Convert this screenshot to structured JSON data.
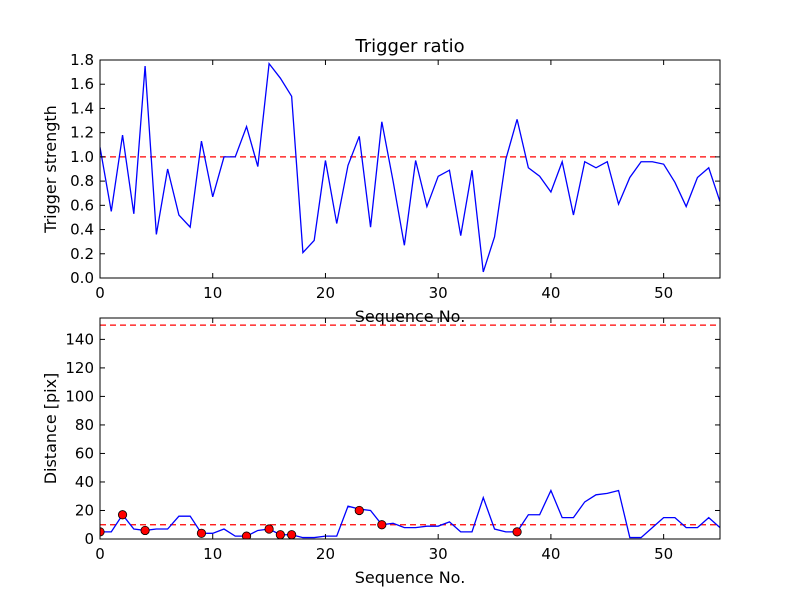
{
  "chart_data": [
    {
      "type": "line",
      "title": "Trigger ratio",
      "xlabel": "Sequence No.",
      "ylabel": "Trigger strength",
      "xlim": [
        0,
        55
      ],
      "ylim": [
        0,
        1.8
      ],
      "xticks": [
        0,
        10,
        20,
        30,
        40,
        50
      ],
      "yticks": [
        0.0,
        0.2,
        0.4,
        0.6,
        0.8,
        1.0,
        1.2,
        1.4,
        1.6,
        1.8
      ],
      "xtick_labels": [
        "0",
        "10",
        "20",
        "30",
        "40",
        "50"
      ],
      "ytick_labels": [
        "0.0",
        "0.2",
        "0.4",
        "0.6",
        "0.8",
        "1.0",
        "1.2",
        "1.4",
        "1.6",
        "1.8"
      ],
      "grid": false,
      "series": [
        {
          "color": "#0000ff",
          "style": "solid",
          "x": [
            0,
            1,
            2,
            3,
            4,
            5,
            6,
            7,
            8,
            9,
            10,
            11,
            12,
            13,
            14,
            15,
            16,
            17,
            18,
            19,
            20,
            21,
            22,
            23,
            24,
            25,
            26,
            27,
            28,
            29,
            30,
            31,
            32,
            33,
            34,
            35,
            36,
            37,
            38,
            39,
            40,
            41,
            42,
            43,
            44,
            45,
            46,
            47,
            48,
            49,
            50,
            51,
            52,
            53,
            54,
            55
          ],
          "y": [
            1.08,
            0.55,
            1.18,
            0.53,
            1.75,
            0.36,
            0.9,
            0.52,
            0.42,
            1.13,
            0.67,
            1.0,
            1.0,
            1.25,
            0.92,
            1.77,
            1.65,
            1.5,
            0.21,
            0.31,
            0.97,
            0.45,
            0.93,
            1.17,
            0.42,
            1.29,
            0.8,
            0.27,
            0.97,
            0.59,
            0.84,
            0.89,
            0.35,
            0.89,
            0.05,
            0.34,
            0.98,
            1.31,
            0.91,
            0.84,
            0.71,
            0.96,
            0.52,
            0.96,
            0.91,
            0.96,
            0.61,
            0.83,
            0.96,
            0.96,
            0.94,
            0.79,
            0.59,
            0.83,
            0.91,
            0.63
          ]
        }
      ],
      "reference_lines": [
        {
          "y": 1.0,
          "color": "#ff0000",
          "style": "dashed"
        }
      ]
    },
    {
      "type": "line",
      "title": "",
      "xlabel": "Sequence No.",
      "ylabel": "Distance [pix]",
      "xlim": [
        0,
        55
      ],
      "ylim": [
        0,
        155
      ],
      "xticks": [
        0,
        10,
        20,
        30,
        40,
        50
      ],
      "yticks": [
        0,
        20,
        40,
        60,
        80,
        100,
        120,
        140
      ],
      "xtick_labels": [
        "0",
        "10",
        "20",
        "30",
        "40",
        "50"
      ],
      "ytick_labels": [
        "0",
        "20",
        "40",
        "60",
        "80",
        "100",
        "120",
        "140"
      ],
      "grid": false,
      "series": [
        {
          "color": "#0000ff",
          "style": "solid",
          "x": [
            0,
            1,
            2,
            3,
            4,
            5,
            6,
            7,
            8,
            9,
            10,
            11,
            12,
            13,
            14,
            15,
            16,
            17,
            18,
            19,
            20,
            21,
            22,
            23,
            24,
            25,
            26,
            27,
            28,
            29,
            30,
            31,
            32,
            33,
            34,
            35,
            36,
            37,
            38,
            39,
            40,
            41,
            42,
            43,
            44,
            45,
            46,
            47,
            48,
            49,
            50,
            51,
            52,
            53,
            54,
            55
          ],
          "y": [
            5,
            5,
            17,
            7,
            6,
            7,
            7,
            16,
            16,
            4,
            4,
            7,
            2,
            2,
            6,
            7,
            3,
            3,
            1,
            1,
            2,
            2,
            23,
            21,
            20,
            10,
            11,
            8,
            8,
            9,
            9,
            12,
            5,
            5,
            29,
            7,
            5,
            5,
            17,
            17,
            34,
            15,
            15,
            26,
            31,
            32,
            34,
            1,
            1,
            8,
            15,
            15,
            8,
            8,
            15,
            8
          ]
        },
        {
          "color": "#ff0000",
          "style": "markers",
          "x": [
            0,
            2,
            4,
            9,
            13,
            15,
            16,
            17,
            23,
            25,
            37
          ],
          "y": [
            5,
            17,
            6,
            4,
            2,
            7,
            3,
            3,
            20,
            10,
            5
          ]
        }
      ],
      "reference_lines": [
        {
          "y": 150,
          "color": "#ff0000",
          "style": "dashed"
        },
        {
          "y": 10,
          "color": "#ff0000",
          "style": "dashed"
        }
      ]
    }
  ]
}
